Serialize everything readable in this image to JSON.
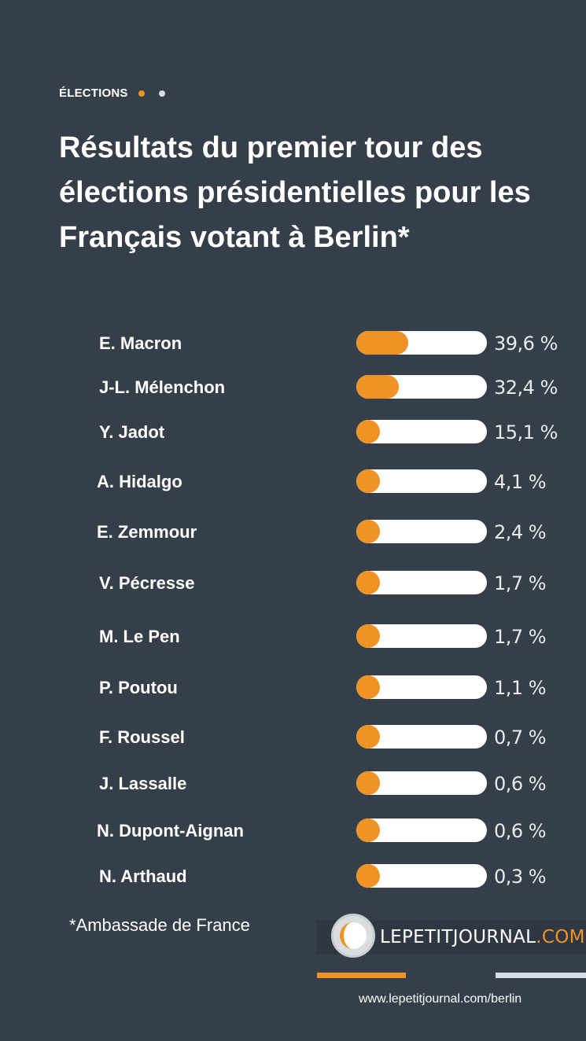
{
  "kicker": "ÉLECTIONS",
  "colors": {
    "background": "#353f4a",
    "accent": "#ef9324",
    "track": "#ffffff",
    "dot2": "#d6dee6"
  },
  "title": "Résultats du premier tour des élections présidentielles pour les Français votant à Berlin*",
  "chart_data": {
    "type": "bar",
    "orientation": "horizontal",
    "categories": [
      "E. Macron",
      "J-L. Mélenchon",
      "Y. Jadot",
      "A. Hidalgo",
      "E. Zemmour",
      "V. Pécresse",
      "M. Le Pen",
      "P. Poutou",
      "F. Roussel",
      "J. Lassalle",
      "N. Dupont-Aignan",
      "N. Arthaud"
    ],
    "values": [
      39.6,
      32.4,
      15.1,
      4.1,
      2.4,
      1.7,
      1.7,
      1.1,
      0.7,
      0.6,
      0.6,
      0.3
    ],
    "labels": [
      "39,6 %",
      "32,4 %",
      "15,1 %",
      "4,1 %",
      "2,4 %",
      "1,7 %",
      "1,7 %",
      "1,1 %",
      "0,7 %",
      "0,6 %",
      "0,6 %",
      "0,3 %"
    ],
    "xlim": [
      0,
      100
    ]
  },
  "source": "*Ambassade de France",
  "logo": {
    "main": "LEPETITJOURNAL",
    "suffix": ".COM"
  },
  "url": "www.lepetitjournal.com/berlin"
}
